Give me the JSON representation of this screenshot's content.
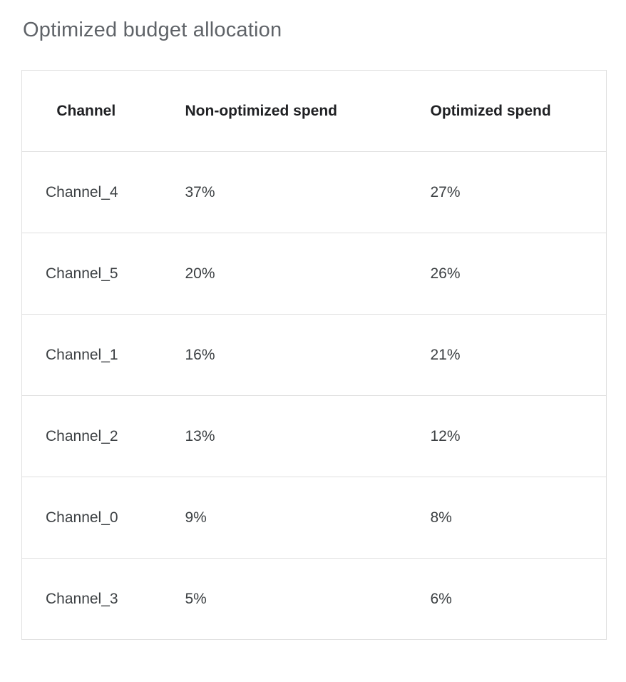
{
  "page": {
    "title": "Optimized budget allocation"
  },
  "colors": {
    "background": "#ffffff",
    "title_text": "#5f6368",
    "header_text": "#202124",
    "cell_text": "#3c4043",
    "border": "#e0e0e0"
  },
  "chart_data": {
    "type": "table",
    "title": "Optimized budget allocation",
    "columns": [
      "Channel",
      "Non-optimized spend",
      "Optimized spend"
    ],
    "rows": [
      [
        "Channel_4",
        "37%",
        "27%"
      ],
      [
        "Channel_5",
        "20%",
        "26%"
      ],
      [
        "Channel_1",
        "16%",
        "21%"
      ],
      [
        "Channel_2",
        "13%",
        "12%"
      ],
      [
        "Channel_0",
        "9%",
        "8%"
      ],
      [
        "Channel_3",
        "5%",
        "6%"
      ]
    ]
  }
}
